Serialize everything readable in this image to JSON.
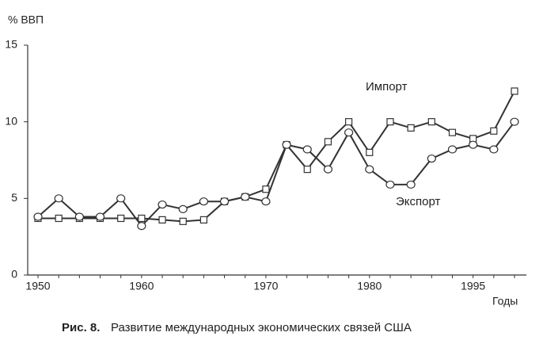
{
  "chart_data": {
    "type": "line",
    "y_label": "% ВВП",
    "x_label": "Годы",
    "figure_label": "Рис. 8.",
    "caption": "Развитие международных экономических связей США",
    "categories": [
      "1950",
      null,
      null,
      null,
      null,
      "1960",
      null,
      null,
      null,
      null,
      null,
      "1970",
      null,
      null,
      null,
      null,
      "1980",
      null,
      null,
      null,
      null,
      "1995",
      null,
      null
    ],
    "series": [
      {
        "name": "Импорт",
        "color": "#333333",
        "marker": "square",
        "values": [
          3.7,
          3.7,
          3.7,
          3.7,
          3.7,
          3.7,
          3.6,
          3.5,
          3.6,
          4.8,
          5.1,
          5.6,
          8.5,
          6.9,
          8.7,
          10.0,
          8.0,
          10.0,
          9.6,
          10.0,
          9.3,
          8.9,
          9.4,
          12.0
        ]
      },
      {
        "name": "Экспорт",
        "color": "#333333",
        "marker": "circle",
        "values": [
          3.8,
          5.0,
          3.8,
          3.8,
          5.0,
          3.2,
          4.6,
          4.3,
          4.8,
          4.8,
          5.1,
          4.8,
          8.5,
          8.2,
          6.9,
          9.3,
          6.9,
          5.9,
          5.9,
          7.6,
          8.2,
          8.5,
          8.2,
          10.0
        ]
      }
    ],
    "ylim": [
      0,
      15
    ],
    "yticks": [
      0,
      5,
      10,
      15
    ],
    "grid": false
  }
}
